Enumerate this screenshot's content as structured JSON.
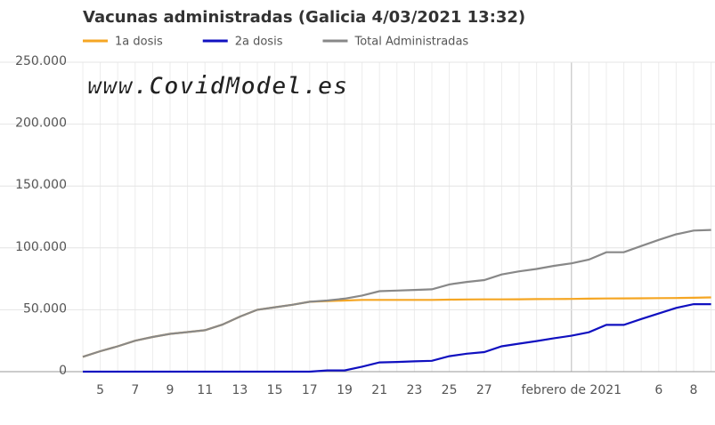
{
  "chart_data": {
    "type": "line",
    "title": "Vacunas administradas (Galicia 4/03/2021 13:32)",
    "annotation": "www.CovidModel.es",
    "categories": [
      null,
      "5",
      null,
      "7",
      null,
      "9",
      null,
      "11",
      null,
      "13",
      null,
      "15",
      null,
      "17",
      null,
      "19",
      null,
      "21",
      null,
      "23",
      null,
      "25",
      null,
      "27",
      null,
      null,
      null,
      null,
      "febrero de 2021",
      null,
      null,
      null,
      null,
      "6",
      null,
      "8",
      null
    ],
    "series": [
      {
        "name": "1a dosis",
        "color": "#f5a623",
        "values": [
          12000,
          16500,
          20500,
          25000,
          28000,
          30500,
          32000,
          33500,
          38000,
          44500,
          50000,
          52000,
          54000,
          56500,
          57000,
          57500,
          58000,
          58000,
          58000,
          58000,
          58000,
          58200,
          58300,
          58400,
          58400,
          58500,
          58600,
          58700,
          58800,
          59000,
          59100,
          59200,
          59300,
          59400,
          59500,
          59700,
          60000
        ]
      },
      {
        "name": "2a dosis",
        "color": "#1010c0",
        "values": [
          0,
          0,
          0,
          0,
          0,
          0,
          0,
          0,
          0,
          0,
          0,
          0,
          0,
          0,
          1000,
          1000,
          4000,
          7500,
          7800,
          8300,
          8800,
          12500,
          14500,
          15800,
          20500,
          22600,
          24700,
          27000,
          29000,
          31800,
          37800,
          37800,
          42500,
          47000,
          51500,
          54500,
          54500
        ]
      },
      {
        "name": "Total Administradas",
        "color": "#888888",
        "values": [
          12000,
          16500,
          20500,
          25000,
          28000,
          30500,
          32000,
          33500,
          38000,
          44500,
          50000,
          52000,
          54000,
          56500,
          57500,
          59000,
          61500,
          65000,
          65500,
          66000,
          66500,
          70500,
          72500,
          74000,
          78500,
          81000,
          83000,
          85500,
          87500,
          90500,
          96500,
          96500,
          101500,
          106500,
          111000,
          114000,
          114500
        ]
      }
    ],
    "ylim": [
      0,
      250000
    ],
    "yticks": [
      0,
      {
        "value": 50000,
        "label": "50.000"
      },
      {
        "value": 100000,
        "label": "100.000"
      },
      {
        "value": 150000,
        "label": "150.000"
      },
      {
        "value": 200000,
        "label": "200.000"
      },
      {
        "value": 250000,
        "label": "250.000"
      }
    ],
    "grid": true
  }
}
